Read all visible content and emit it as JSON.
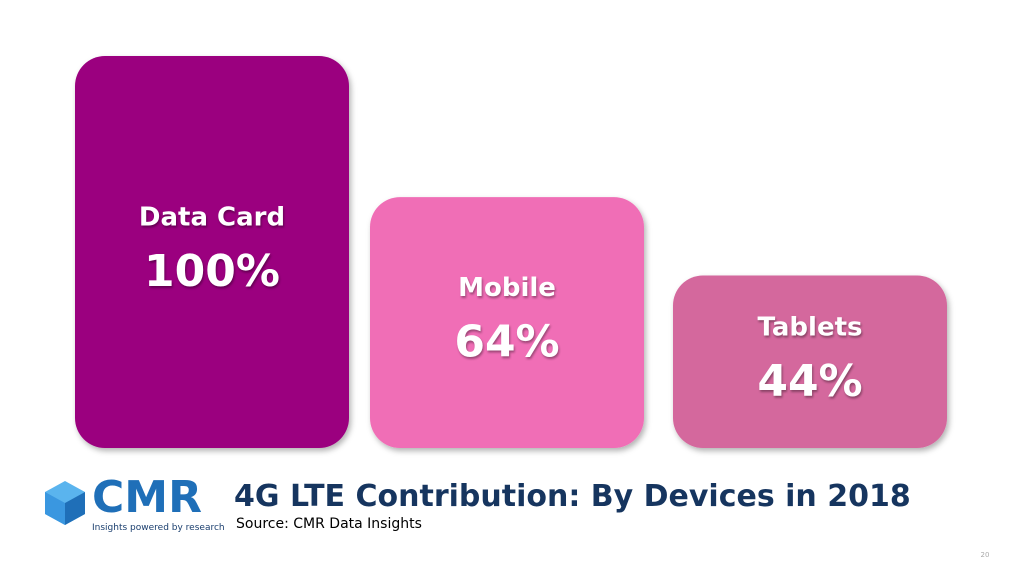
{
  "chart_data": {
    "type": "bar",
    "title": "4G LTE Contribution: By Devices in 2018",
    "source": "Source: CMR Data Insights",
    "categories": [
      "Data Card",
      "Mobile",
      "Tablets"
    ],
    "values": [
      100,
      64,
      44
    ],
    "value_labels": [
      "100%",
      "64%",
      "44%"
    ],
    "colors": [
      "#9b007f",
      "#f06eb6",
      "#d4689d"
    ]
  },
  "logo": {
    "name": "CMR",
    "tagline": "Insights powered by research"
  },
  "page_number": "20"
}
